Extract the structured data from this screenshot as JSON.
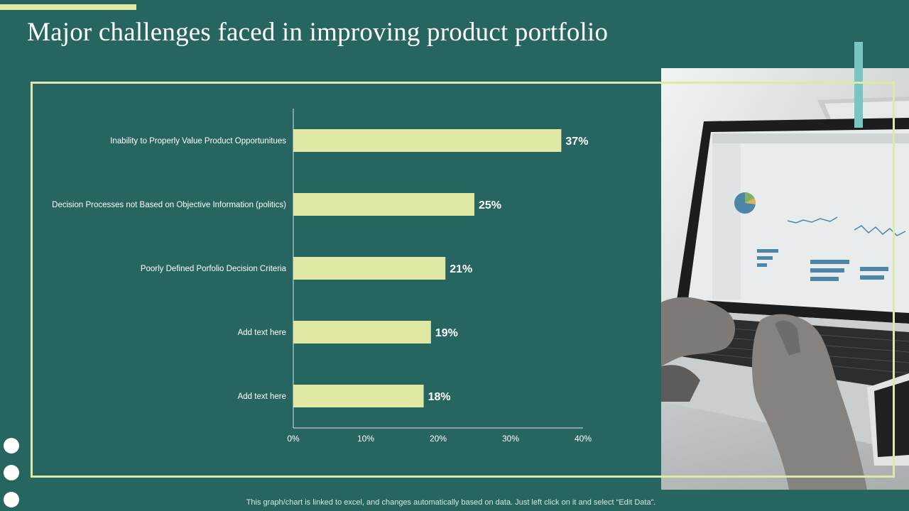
{
  "slide": {
    "title": "Major challenges faced in improving product portfolio",
    "footnote": "This graph/chart is linked to excel, and changes automatically based on data. Just left click on it and select “Edit Data”."
  },
  "colors": {
    "background": "#276561",
    "bar": "#dfe9a3",
    "frame": "#dde9a6",
    "accent_teal": "#78c6c1",
    "text": "#ffffff"
  },
  "image": {
    "subject": "person typing on a laptop showing an analytics dashboard"
  },
  "chart_data": {
    "type": "bar",
    "orientation": "horizontal",
    "title": "",
    "xlabel": "",
    "ylabel": "",
    "categories": [
      "Inability to Properly Value Product Opportunitues",
      "Decision Processes not Based on Objective Information (politics)",
      "Poorly Defined Porfolio Decision Criteria",
      "Add text here",
      "Add text here"
    ],
    "values": [
      37,
      25,
      21,
      19,
      18
    ],
    "value_labels": [
      "37%",
      "25%",
      "21%",
      "19%",
      "18%"
    ],
    "xlim": [
      0,
      40
    ],
    "xticks": [
      0,
      10,
      20,
      30,
      40
    ],
    "xtick_labels": [
      "0%",
      "10%",
      "20%",
      "30%",
      "40%"
    ],
    "grid": false,
    "legend": "none"
  }
}
